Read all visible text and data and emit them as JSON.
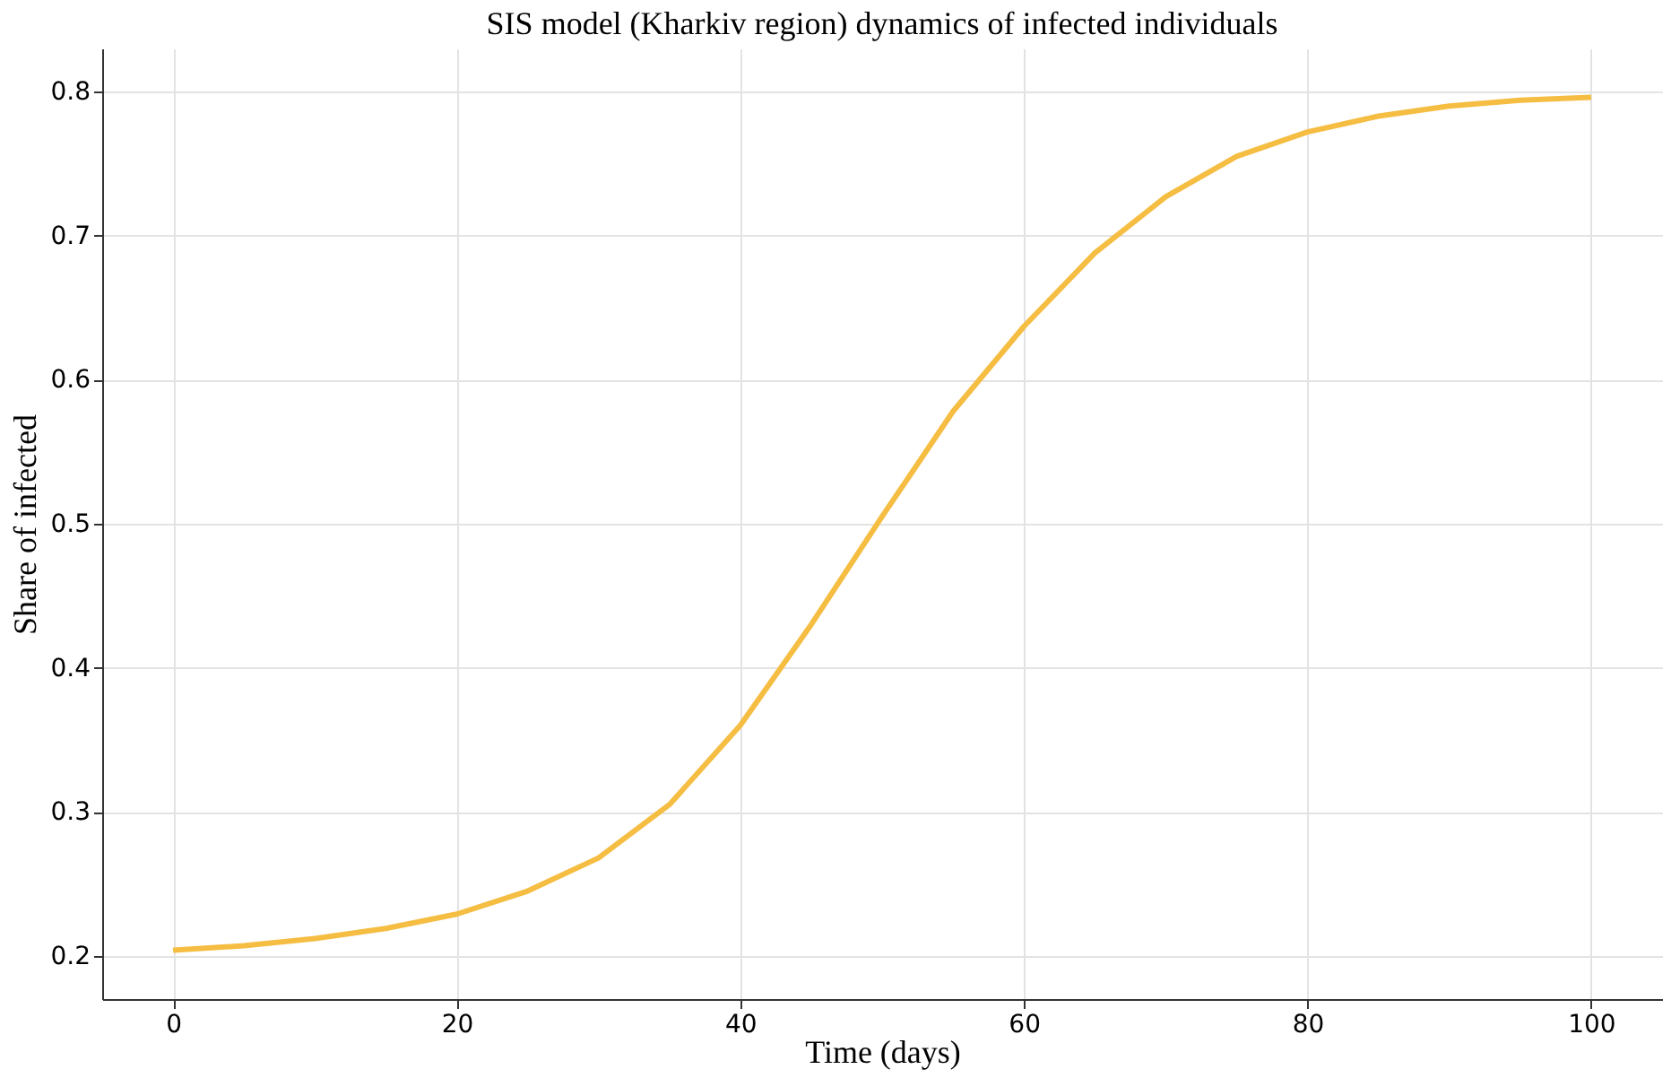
{
  "chart_data": {
    "type": "line",
    "title": "SIS model (Kharkiv region) dynamics of infected individuals",
    "xlabel": "Time (days)",
    "ylabel": "Share of infected",
    "x": [
      0,
      5,
      10,
      15,
      20,
      25,
      30,
      35,
      40,
      45,
      50,
      55,
      60,
      65,
      70,
      75,
      80,
      85,
      90,
      95,
      100
    ],
    "series": [
      {
        "color": "#f5bd42",
        "values": [
          0.204,
          0.207,
          0.212,
          0.219,
          0.229,
          0.245,
          0.268,
          0.305,
          0.36,
          0.43,
          0.505,
          0.578,
          0.637,
          0.688,
          0.727,
          0.755,
          0.772,
          0.783,
          0.79,
          0.794,
          0.796
        ]
      }
    ],
    "xlim": [
      -5,
      105
    ],
    "xticks": [
      0,
      20,
      40,
      60,
      80,
      100
    ],
    "ylim": [
      0.17,
      0.83
    ],
    "yticks": [
      0.2,
      0.3,
      0.4,
      0.5,
      0.6,
      0.7,
      0.8
    ],
    "grid": true,
    "marker": "none",
    "line_style": "solid"
  }
}
